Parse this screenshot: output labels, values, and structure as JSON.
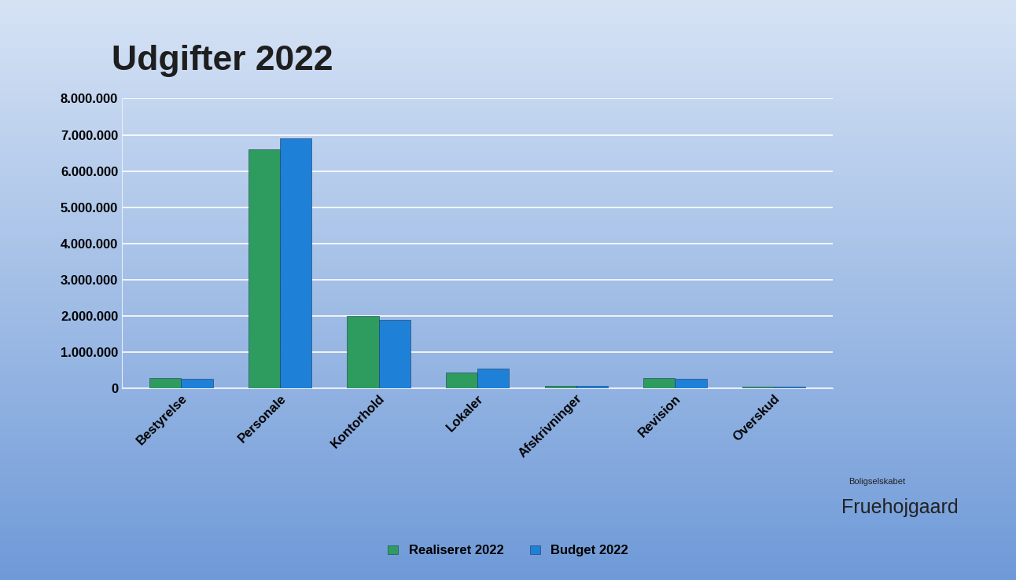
{
  "chart_data": {
    "type": "bar",
    "title": "Udgifter 2022",
    "categories": [
      "Bestyrelse",
      "Personale",
      "Kontorhold",
      "Lokaler",
      "Afskrivninger",
      "Revision",
      "Overskud"
    ],
    "series": [
      {
        "name": "Realiseret 2022",
        "color": "#2e9c5e",
        "values": [
          300000,
          6600000,
          2000000,
          450000,
          80000,
          300000,
          50000
        ]
      },
      {
        "name": "Budget 2022",
        "color": "#1f80d8",
        "values": [
          280000,
          6900000,
          1900000,
          550000,
          80000,
          280000,
          50000
        ]
      }
    ],
    "ylim": [
      0,
      8000000
    ],
    "yticks": [
      0,
      {
        "value": 1000000,
        "label": "1.000.000"
      },
      {
        "value": 2000000,
        "label": "2.000.000"
      },
      {
        "value": 3000000,
        "label": "3.000.000"
      },
      {
        "value": 4000000,
        "label": "4.000.000"
      },
      {
        "value": 5000000,
        "label": "5.000.000"
      },
      {
        "value": 6000000,
        "label": "6.000.000"
      },
      {
        "value": 7000000,
        "label": "7.000.000"
      },
      {
        "value": 8000000,
        "label": "8.000.000"
      }
    ],
    "grid": true,
    "legend": "bottom",
    "annotations": [
      "Boligselskabet",
      "Fruehojgaard"
    ]
  }
}
